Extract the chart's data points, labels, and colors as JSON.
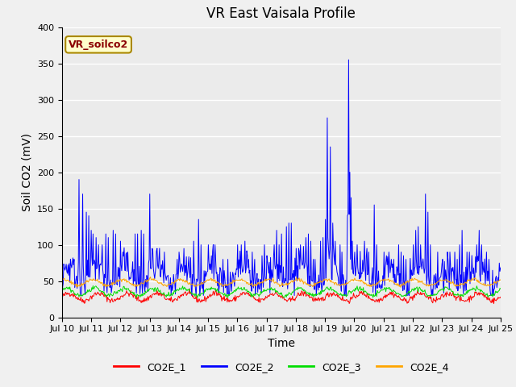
{
  "title": "VR East Vaisala Profile",
  "ylabel": "Soil CO2 (mV)",
  "xlabel": "Time",
  "ylim": [
    0,
    400
  ],
  "xlim": [
    0,
    360
  ],
  "fig_bg_color": "#f0f0f0",
  "plot_bg_color": "#ebebeb",
  "series_colors": {
    "CO2E_1": "#ff0000",
    "CO2E_2": "#0000ff",
    "CO2E_3": "#00dd00",
    "CO2E_4": "#ffa500"
  },
  "xtick_labels": [
    "Jul 10",
    "Jul 11",
    "Jul 12",
    "Jul 13",
    "Jul 14",
    "Jul 15",
    "Jul 16",
    "Jul 17",
    "Jul 18",
    "Jul 19",
    "Jul 20",
    "Jul 21",
    "Jul 22",
    "Jul 23",
    "Jul 24",
    "Jul 25"
  ],
  "xtick_positions": [
    0,
    24,
    48,
    72,
    96,
    120,
    144,
    168,
    192,
    216,
    240,
    264,
    288,
    312,
    336,
    360
  ],
  "ytick_positions": [
    0,
    50,
    100,
    150,
    200,
    250,
    300,
    350,
    400
  ],
  "annotation_text": "VR_soilco2",
  "annotation_color": "#8b0000",
  "annotation_bg": "#ffffcc",
  "annotation_edge": "#aa8800",
  "title_fontsize": 12,
  "tick_fontsize": 8,
  "axis_label_fontsize": 10,
  "legend_fontsize": 9,
  "n_points": 720
}
